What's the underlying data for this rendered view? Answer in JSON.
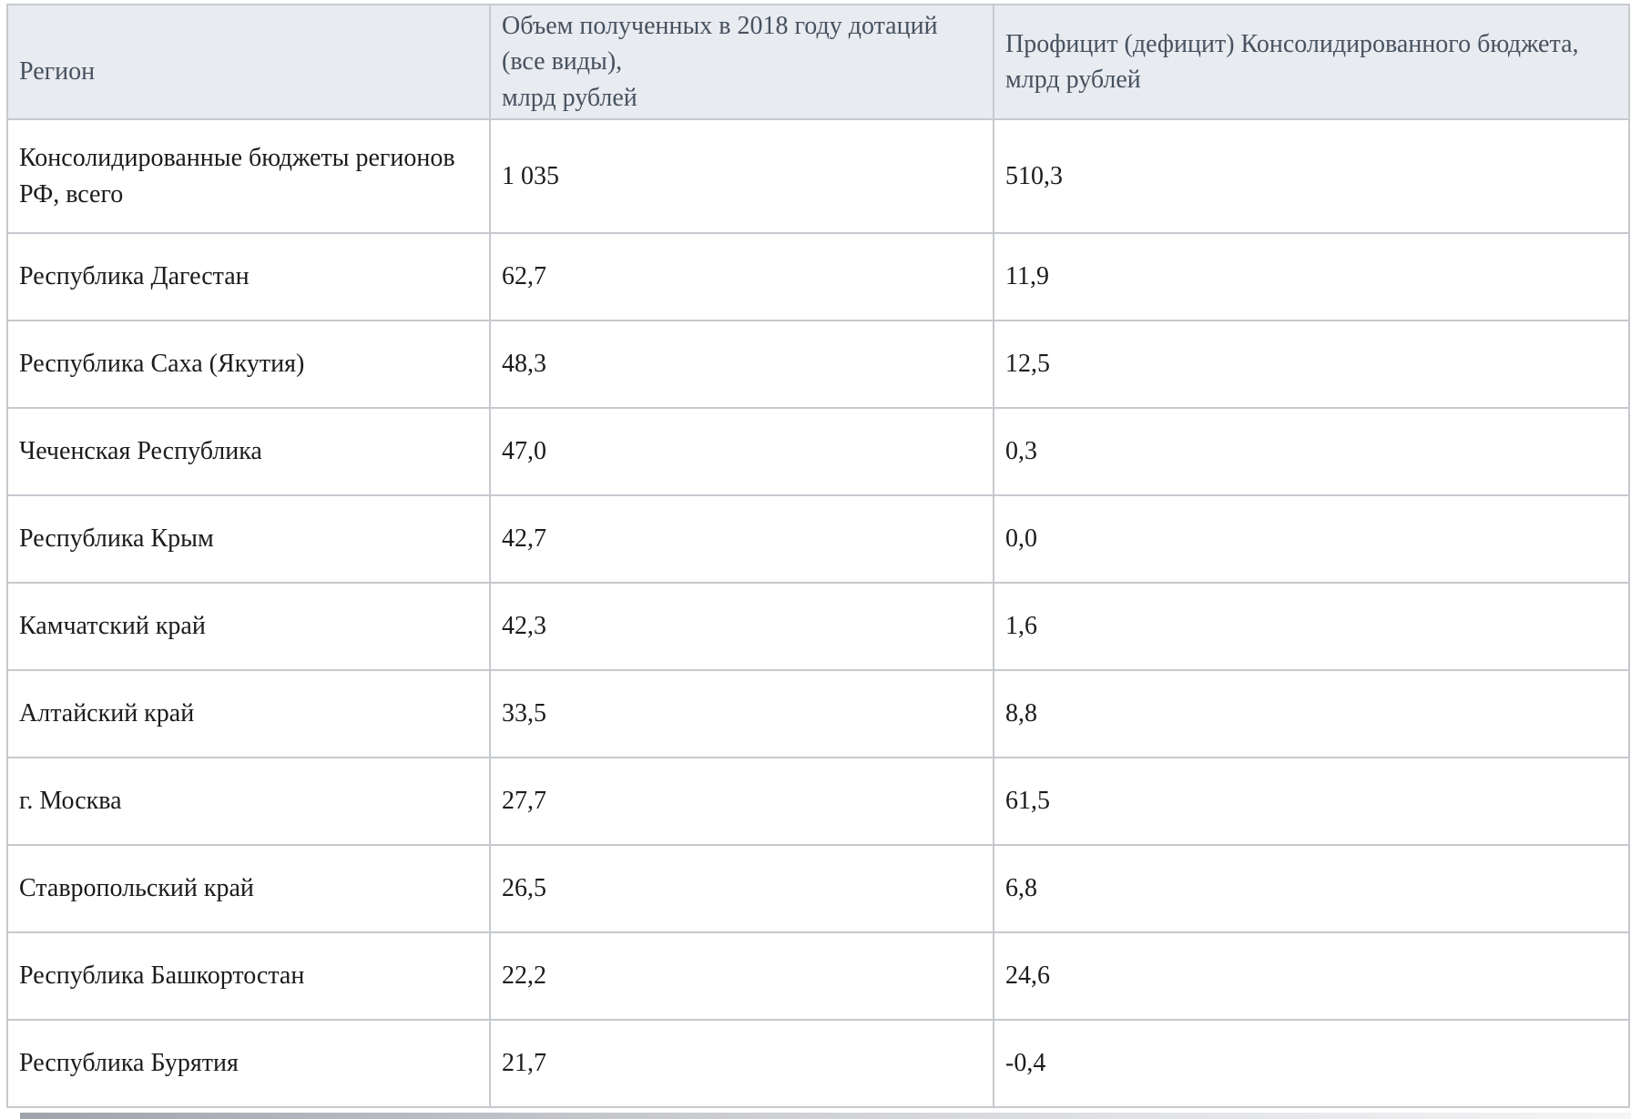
{
  "table": {
    "columns": [
      {
        "label": "Регион"
      },
      {
        "label": "Объем полученных в 2018 году дотаций (все виды),\nмлрд рублей"
      },
      {
        "label": "Профицит (дефицит) Консолидированного бюджета,\nмлрд рублей"
      }
    ],
    "rows": [
      {
        "region": "Консолидированные бюджеты регионов РФ, всего",
        "grants": "1 035",
        "surplus": "510,3"
      },
      {
        "region": "Республика Дагестан",
        "grants": "62,7",
        "surplus": "11,9"
      },
      {
        "region": "Республика Саха (Якутия)",
        "grants": "48,3",
        "surplus": "12,5"
      },
      {
        "region": "Чеченская Республика",
        "grants": "47,0",
        "surplus": "0,3"
      },
      {
        "region": "Республика Крым",
        "grants": "42,7",
        "surplus": "0,0"
      },
      {
        "region": "Камчатский край",
        "grants": "42,3",
        "surplus": "1,6"
      },
      {
        "region": "Алтайский край",
        "grants": "33,5",
        "surplus": "8,8"
      },
      {
        "region": "г. Москва",
        "grants": "27,7",
        "surplus": "61,5"
      },
      {
        "region": "Ставропольский край",
        "grants": "26,5",
        "surplus": "6,8"
      },
      {
        "region": "Республика Башкортостан",
        "grants": "22,2",
        "surplus": "24,6"
      },
      {
        "region": "Республика Бурятия",
        "grants": "21,7",
        "surplus": "-0,4"
      }
    ]
  },
  "chart_data": {
    "type": "table",
    "title": "",
    "columns": [
      "Регион",
      "Объем полученных в 2018 году дотаций (все виды), млрд рублей",
      "Профицит (дефицит) Консолидированного бюджета, млрд рублей"
    ],
    "rows": [
      [
        "Консолидированные бюджеты регионов РФ, всего",
        1035,
        510.3
      ],
      [
        "Республика Дагестан",
        62.7,
        11.9
      ],
      [
        "Республика Саха (Якутия)",
        48.3,
        12.5
      ],
      [
        "Чеченская Республика",
        47.0,
        0.3
      ],
      [
        "Республика Крым",
        42.7,
        0.0
      ],
      [
        "Камчатский край",
        42.3,
        1.6
      ],
      [
        "Алтайский край",
        33.5,
        8.8
      ],
      [
        "г. Москва",
        27.7,
        61.5
      ],
      [
        "Ставропольский край",
        26.5,
        6.8
      ],
      [
        "Республика Башкортостан",
        22.2,
        24.6
      ],
      [
        "Республика Бурятия",
        21.7,
        -0.4
      ]
    ]
  },
  "colors": {
    "header_background": "#e8ebf0",
    "header_text": "#47525f",
    "body_text": "#1b1b1b",
    "border_outer": "#b7bbc2",
    "border_inner": "#c6c9ce",
    "page_background": "#ffffff"
  }
}
